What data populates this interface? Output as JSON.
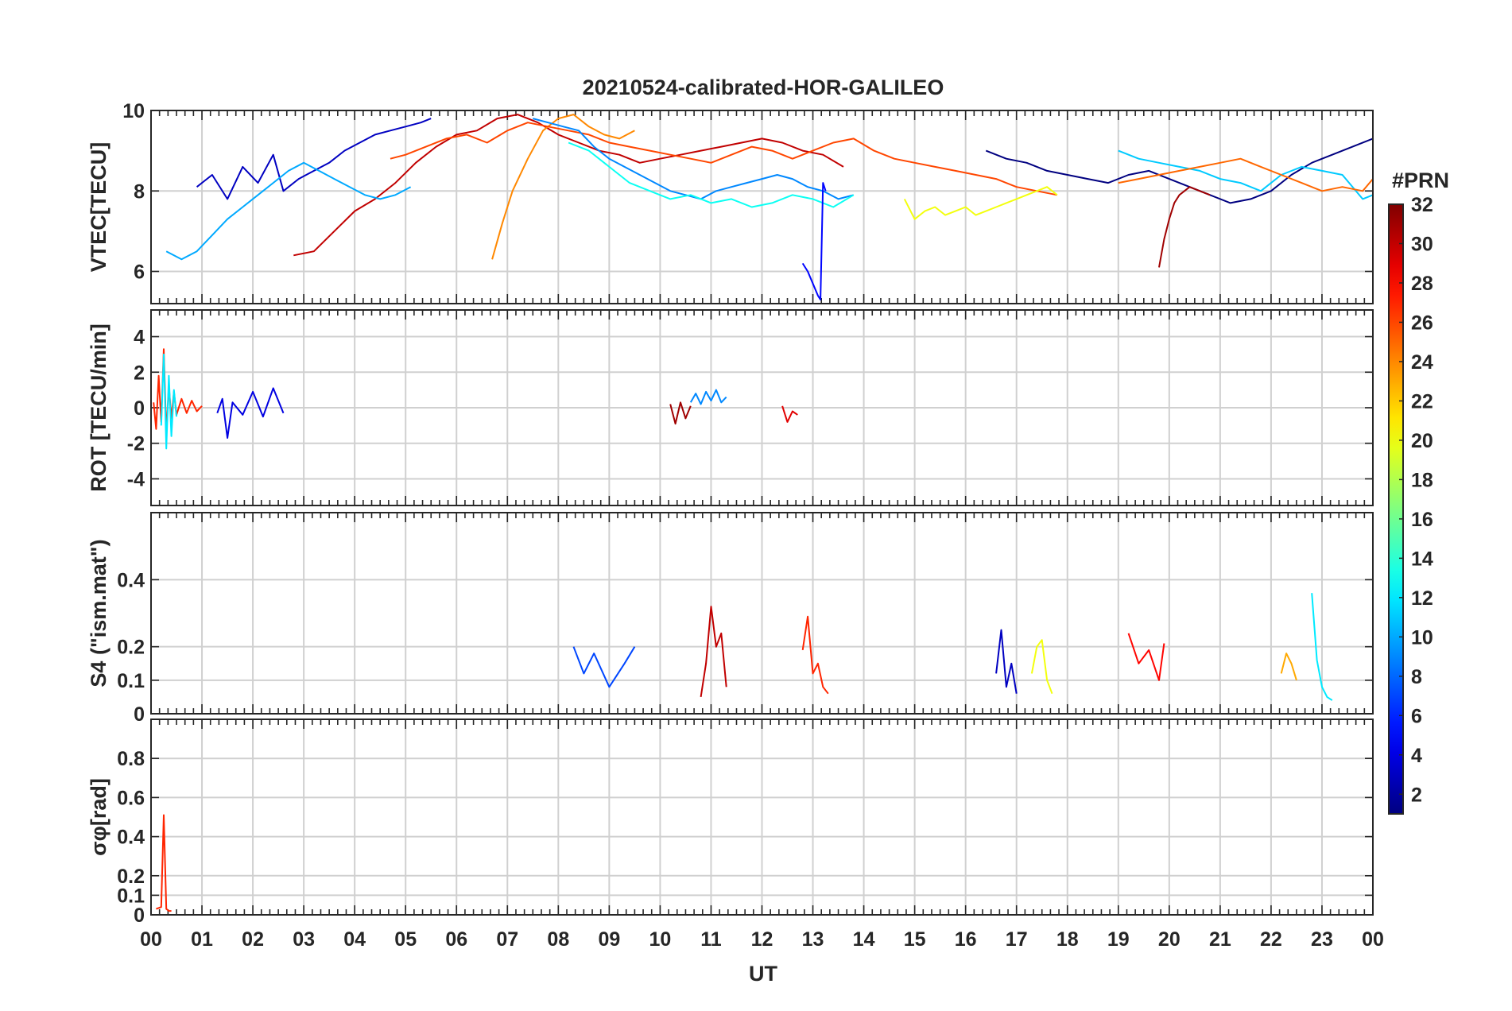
{
  "chart_data": {
    "type": "line",
    "title": "20210524-calibrated-HOR-GALILEO",
    "xlabel": "UT",
    "x_tick_labels": [
      "00",
      "01",
      "02",
      "03",
      "04",
      "05",
      "06",
      "07",
      "08",
      "09",
      "10",
      "11",
      "12",
      "13",
      "14",
      "15",
      "16",
      "17",
      "18",
      "19",
      "20",
      "21",
      "22",
      "23",
      "00"
    ],
    "xlim_hours": [
      0,
      24
    ],
    "grid": true,
    "colorbar": {
      "title": "#PRN",
      "range": [
        1,
        32
      ],
      "ticks": [
        "2",
        "4",
        "6",
        "8",
        "10",
        "12",
        "14",
        "16",
        "18",
        "20",
        "22",
        "24",
        "26",
        "28",
        "30",
        "32"
      ],
      "tick_values": [
        2,
        4,
        6,
        8,
        10,
        12,
        14,
        16,
        18,
        20,
        22,
        24,
        26,
        28,
        30,
        32
      ],
      "colormap": "jet",
      "placement": "right"
    },
    "panels": [
      {
        "id": "vtec",
        "ylabel": "VTEC[TECU]",
        "ylim": [
          5.2,
          10
        ],
        "yticks": [
          6,
          8,
          10
        ],
        "ytick_labels": [
          "6",
          "8",
          "10"
        ],
        "series": [
          {
            "prn": 3,
            "x": [
              0.9,
              1.2,
              1.5,
              1.8,
              2.1,
              2.4,
              2.6,
              2.9,
              3.2,
              3.5,
              3.8,
              4.1,
              4.4,
              4.7,
              5.0,
              5.3,
              5.5
            ],
            "y": [
              8.1,
              8.4,
              7.8,
              8.6,
              8.2,
              8.9,
              8.0,
              8.3,
              8.5,
              8.7,
              9.0,
              9.2,
              9.4,
              9.5,
              9.6,
              9.7,
              9.8
            ]
          },
          {
            "prn": 30,
            "x": [
              2.8,
              3.2,
              3.6,
              4.0,
              4.4,
              4.8,
              5.2,
              5.6,
              6.0,
              6.4,
              6.8,
              7.2,
              7.6,
              8.0,
              8.4,
              8.8,
              9.2,
              9.6,
              10.0,
              10.4,
              10.8,
              11.2,
              11.6,
              12.0,
              12.4,
              12.8,
              13.2,
              13.6
            ],
            "y": [
              6.4,
              6.5,
              7.0,
              7.5,
              7.8,
              8.2,
              8.7,
              9.1,
              9.4,
              9.5,
              9.8,
              9.9,
              9.7,
              9.4,
              9.2,
              9.0,
              8.9,
              8.7,
              8.8,
              8.9,
              9.0,
              9.1,
              9.2,
              9.3,
              9.2,
              9.0,
              8.9,
              8.6
            ]
          },
          {
            "prn": 24,
            "x": [
              6.7,
              6.9,
              7.1,
              7.4,
              7.7,
              8.0,
              8.3,
              8.6,
              8.9,
              9.2,
              9.5
            ],
            "y": [
              6.3,
              7.2,
              8.0,
              8.8,
              9.5,
              9.8,
              9.9,
              9.6,
              9.4,
              9.3,
              9.5
            ]
          },
          {
            "prn": 26,
            "x": [
              4.7,
              5.0,
              5.4,
              5.8,
              6.2,
              6.6,
              7.0,
              7.4,
              7.8,
              8.2,
              8.6,
              9.0,
              9.4,
              9.8,
              10.2,
              10.6,
              11.0,
              11.4,
              11.8,
              12.2,
              12.6,
              13.0,
              13.4,
              13.8,
              14.2,
              14.6,
              15.0,
              15.4,
              15.8,
              16.2,
              16.6,
              17.0,
              17.4,
              17.8
            ],
            "y": [
              8.8,
              8.9,
              9.1,
              9.3,
              9.4,
              9.2,
              9.5,
              9.7,
              9.6,
              9.5,
              9.4,
              9.2,
              9.1,
              9.0,
              8.9,
              8.8,
              8.7,
              8.9,
              9.1,
              9.0,
              8.8,
              9.0,
              9.2,
              9.3,
              9.0,
              8.8,
              8.7,
              8.6,
              8.5,
              8.4,
              8.3,
              8.1,
              8.0,
              7.9
            ]
          },
          {
            "prn": 9,
            "x": [
              7.5,
              7.8,
              8.1,
              8.4,
              8.7,
              9.0,
              9.3,
              9.6,
              9.9,
              10.2,
              10.5,
              10.8,
              11.1,
              11.4,
              11.7,
              12.0,
              12.3,
              12.6,
              12.9,
              13.2,
              13.5,
              13.8
            ],
            "y": [
              9.8,
              9.7,
              9.6,
              9.5,
              9.1,
              8.8,
              8.6,
              8.4,
              8.2,
              8.0,
              7.9,
              7.8,
              8.0,
              8.1,
              8.2,
              8.3,
              8.4,
              8.3,
              8.1,
              8.0,
              7.8,
              7.9
            ]
          },
          {
            "prn": 13,
            "x": [
              8.2,
              8.6,
              9.0,
              9.4,
              9.8,
              10.2,
              10.6,
              11.0,
              11.4,
              11.8,
              12.2,
              12.6,
              13.0,
              13.4,
              13.8
            ],
            "y": [
              9.2,
              9.0,
              8.6,
              8.2,
              8.0,
              7.8,
              7.9,
              7.7,
              7.8,
              7.6,
              7.7,
              7.9,
              7.8,
              7.6,
              7.9
            ]
          },
          {
            "prn": 5,
            "x": [
              12.8,
              12.9,
              13.0,
              13.1,
              13.15,
              13.2,
              13.25
            ],
            "y": [
              6.2,
              6.0,
              5.7,
              5.4,
              5.3,
              8.2,
              8.0
            ]
          },
          {
            "prn": 1,
            "x": [
              16.4,
              16.8,
              17.2,
              17.6,
              18.0,
              18.4,
              18.8,
              19.2,
              19.6,
              20.0,
              20.4,
              20.8,
              21.2,
              21.6,
              22.0,
              22.4,
              22.8,
              23.2,
              23.6,
              24.0
            ],
            "y": [
              9.0,
              8.8,
              8.7,
              8.5,
              8.4,
              8.3,
              8.2,
              8.4,
              8.5,
              8.3,
              8.1,
              7.9,
              7.7,
              7.8,
              8.0,
              8.4,
              8.7,
              8.9,
              9.1,
              9.3
            ]
          },
          {
            "prn": 11,
            "x": [
              19.0,
              19.4,
              19.8,
              20.2,
              20.6,
              21.0,
              21.4,
              21.8,
              22.2,
              22.6,
              23.0,
              23.4,
              23.8,
              24.0
            ],
            "y": [
              9.0,
              8.8,
              8.7,
              8.6,
              8.5,
              8.3,
              8.2,
              8.0,
              8.4,
              8.6,
              8.5,
              8.4,
              7.8,
              7.9
            ]
          },
          {
            "prn": 25,
            "x": [
              19.0,
              19.4,
              19.8,
              20.2,
              20.6,
              21.0,
              21.4,
              21.8,
              22.2,
              22.6,
              23.0,
              23.4,
              23.8,
              24.0
            ],
            "y": [
              8.2,
              8.3,
              8.4,
              8.5,
              8.6,
              8.7,
              8.8,
              8.6,
              8.4,
              8.2,
              8.0,
              8.1,
              8.0,
              8.3
            ]
          },
          {
            "prn": 31,
            "x": [
              19.8,
              19.9,
              20.0,
              20.1,
              20.2,
              20.4,
              20.6,
              20.8
            ],
            "y": [
              6.1,
              6.8,
              7.3,
              7.7,
              7.9,
              8.1,
              8.0,
              7.9
            ]
          },
          {
            "prn": 20,
            "x": [
              14.8,
              15.0,
              15.2,
              15.4,
              15.6,
              15.8,
              16.0,
              16.2,
              16.4,
              16.6,
              16.8,
              17.0,
              17.2,
              17.4,
              17.6,
              17.8
            ],
            "y": [
              7.8,
              7.3,
              7.5,
              7.6,
              7.4,
              7.5,
              7.6,
              7.4,
              7.5,
              7.6,
              7.7,
              7.8,
              7.9,
              8.0,
              8.1,
              7.9
            ]
          },
          {
            "prn": 10,
            "x": [
              0.3,
              0.6,
              0.9,
              1.2,
              1.5,
              1.8,
              2.1,
              2.4,
              2.7,
              3.0,
              3.3,
              3.6,
              3.9,
              4.2,
              4.5,
              4.8,
              5.1
            ],
            "y": [
              6.5,
              6.3,
              6.5,
              6.9,
              7.3,
              7.6,
              7.9,
              8.2,
              8.5,
              8.7,
              8.5,
              8.3,
              8.1,
              7.9,
              7.8,
              7.9,
              8.1
            ]
          }
        ]
      },
      {
        "id": "rot",
        "ylabel": "ROT [TECU/min]",
        "ylim": [
          -5.5,
          5.5
        ],
        "yticks": [
          -4,
          -2,
          0,
          2,
          4
        ],
        "ytick_labels": [
          "-4",
          "-2",
          "0",
          "2",
          "4"
        ],
        "series": [
          {
            "prn": 27,
            "x": [
              0.05,
              0.1,
              0.15,
              0.2,
              0.25,
              0.3,
              0.35,
              0.4,
              0.45,
              0.5,
              0.6,
              0.7,
              0.8,
              0.9,
              1.0
            ],
            "y": [
              0.3,
              -1.2,
              1.8,
              -0.8,
              3.3,
              -1.5,
              1.2,
              -0.6,
              0.9,
              -0.4,
              0.5,
              -0.3,
              0.4,
              -0.2,
              0.1
            ]
          },
          {
            "prn": 12,
            "x": [
              0.2,
              0.25,
              0.3,
              0.35,
              0.4,
              0.45,
              0.5
            ],
            "y": [
              -1.0,
              3.0,
              -2.3,
              1.8,
              -1.6,
              1.0,
              -0.5
            ]
          },
          {
            "prn": 4,
            "x": [
              1.3,
              1.4,
              1.5,
              1.6,
              1.8,
              2.0,
              2.2,
              2.4,
              2.6
            ],
            "y": [
              -0.3,
              0.5,
              -1.7,
              0.3,
              -0.4,
              0.9,
              -0.5,
              1.1,
              -0.3
            ]
          },
          {
            "prn": 9,
            "x": [
              10.6,
              10.7,
              10.8,
              10.9,
              11.0,
              11.1,
              11.2,
              11.3
            ],
            "y": [
              0.3,
              0.8,
              0.2,
              0.9,
              0.4,
              1.0,
              0.3,
              0.6
            ]
          },
          {
            "prn": 31,
            "x": [
              10.2,
              10.3,
              10.4,
              10.5,
              10.6
            ],
            "y": [
              0.2,
              -0.9,
              0.3,
              -0.6,
              0.1
            ]
          },
          {
            "prn": 29,
            "x": [
              12.4,
              12.5,
              12.6,
              12.7
            ],
            "y": [
              0.1,
              -0.8,
              -0.2,
              -0.4
            ]
          }
        ]
      },
      {
        "id": "s4",
        "ylabel": "S4 (\"ism.mat\")",
        "ylim": [
          0,
          0.6
        ],
        "yticks": [
          0,
          0.1,
          0.2,
          0.4
        ],
        "ytick_labels": [
          "0",
          "0.1",
          "0.2",
          "0.4"
        ],
        "series": [
          {
            "prn": 30,
            "x": [
              10.8,
              10.9,
              11.0,
              11.1,
              11.2,
              11.3
            ],
            "y": [
              0.05,
              0.15,
              0.32,
              0.2,
              0.24,
              0.08
            ]
          },
          {
            "prn": 27,
            "x": [
              12.8,
              12.9,
              13.0,
              13.1,
              13.2,
              13.3
            ],
            "y": [
              0.19,
              0.29,
              0.12,
              0.15,
              0.08,
              0.06
            ]
          },
          {
            "prn": 12,
            "x": [
              22.8,
              22.9,
              23.0,
              23.1,
              23.2
            ],
            "y": [
              0.36,
              0.16,
              0.08,
              0.05,
              0.04
            ]
          },
          {
            "prn": 23,
            "x": [
              22.2,
              22.3,
              22.4,
              22.5
            ],
            "y": [
              0.12,
              0.18,
              0.15,
              0.1
            ]
          },
          {
            "prn": 7,
            "x": [
              8.3,
              8.5,
              8.7,
              9.0,
              9.3,
              9.5
            ],
            "y": [
              0.2,
              0.12,
              0.18,
              0.08,
              0.15,
              0.2
            ]
          },
          {
            "prn": 3,
            "x": [
              16.6,
              16.7,
              16.8,
              16.9,
              17.0
            ],
            "y": [
              0.12,
              0.25,
              0.08,
              0.15,
              0.06
            ]
          },
          {
            "prn": 20,
            "x": [
              17.3,
              17.4,
              17.5,
              17.6,
              17.7
            ],
            "y": [
              0.12,
              0.2,
              0.22,
              0.1,
              0.06
            ]
          },
          {
            "prn": 28,
            "x": [
              19.2,
              19.4,
              19.6,
              19.8,
              19.9
            ],
            "y": [
              0.24,
              0.15,
              0.19,
              0.1,
              0.21
            ]
          }
        ]
      },
      {
        "id": "sigma",
        "ylabel": "σφ[rad]",
        "ylim": [
          0,
          1
        ],
        "yticks": [
          0,
          0.1,
          0.2,
          0.4,
          0.6,
          0.8
        ],
        "ytick_labels": [
          "0",
          "0.1",
          "0.2",
          "0.4",
          "0.6",
          "0.8"
        ],
        "series": [
          {
            "prn": 27,
            "x": [
              0.1,
              0.2,
              0.25,
              0.3,
              0.35,
              0.4
            ],
            "y": [
              0.03,
              0.04,
              0.51,
              0.03,
              0.02,
              0.02
            ]
          }
        ]
      }
    ]
  }
}
